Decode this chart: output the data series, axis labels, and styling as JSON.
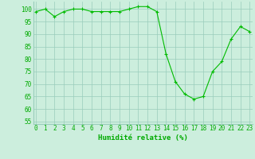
{
  "x": [
    0,
    1,
    2,
    3,
    4,
    5,
    6,
    7,
    8,
    9,
    10,
    11,
    12,
    13,
    14,
    15,
    16,
    17,
    18,
    19,
    20,
    21,
    22,
    23
  ],
  "y": [
    99,
    100,
    97,
    99,
    100,
    100,
    99,
    99,
    99,
    99,
    100,
    101,
    101,
    99,
    82,
    71,
    66,
    64,
    65,
    75,
    79,
    88,
    93,
    91
  ],
  "line_color": "#00bb00",
  "marker": "+",
  "marker_size": 3,
  "marker_lw": 0.8,
  "line_width": 0.8,
  "bg_color": "#cceedd",
  "grid_color": "#99ccbb",
  "xlabel": "Humidité relative (%)",
  "xlabel_color": "#00aa00",
  "xlabel_fontsize": 6.5,
  "tick_fontsize": 5.5,
  "tick_color": "#00aa00",
  "ylim": [
    54,
    103
  ],
  "yticks": [
    55,
    60,
    65,
    70,
    75,
    80,
    85,
    90,
    95,
    100
  ],
  "xlim": [
    -0.3,
    23.3
  ],
  "xticks": [
    0,
    1,
    2,
    3,
    4,
    5,
    6,
    7,
    8,
    9,
    10,
    11,
    12,
    13,
    14,
    15,
    16,
    17,
    18,
    19,
    20,
    21,
    22,
    23
  ]
}
